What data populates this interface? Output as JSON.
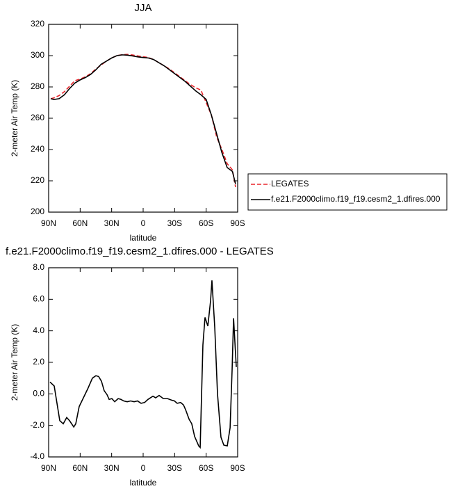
{
  "chart_data": [
    {
      "type": "line",
      "title": "JJA",
      "xlabel": "latitude",
      "ylabel": "2-meter Air Temp (K)",
      "x": [
        88,
        85,
        80,
        75,
        70,
        65,
        60,
        55,
        50,
        45,
        40,
        35,
        30,
        25,
        20,
        15,
        10,
        5,
        0,
        -5,
        -10,
        -15,
        -20,
        -25,
        -30,
        -35,
        -40,
        -45,
        -50,
        -55,
        -60,
        -65,
        -70,
        -75,
        -80,
        -85,
        -88
      ],
      "series": [
        {
          "name": "LEGATES",
          "color": "#e8262c",
          "line_style": "dashed",
          "values": [
            272.5,
            273,
            274.5,
            277,
            280.5,
            284,
            285,
            286.5,
            288.5,
            291.5,
            294,
            296.5,
            298.5,
            300,
            300.6,
            300.8,
            300.4,
            299.8,
            299.3,
            298.8,
            297.5,
            295.5,
            293.5,
            291.5,
            289,
            286.5,
            284,
            281.5,
            279.5,
            278,
            270,
            262,
            248,
            240,
            231,
            227,
            216
          ]
        },
        {
          "name": "f.e21.F2000climo.f19_f19.cesm2_1.dfires.000",
          "color": "#000000",
          "line_style": "solid",
          "values": [
            272.5,
            272,
            272.5,
            275,
            279,
            282.5,
            284.5,
            286,
            288,
            291,
            294.5,
            296.5,
            298.5,
            300,
            300.5,
            300.3,
            299.8,
            299.2,
            298.8,
            298.5,
            297.5,
            295.5,
            293.5,
            291,
            288.5,
            286,
            283.5,
            280.5,
            277.5,
            275,
            272,
            262,
            250,
            238,
            228.5,
            226,
            218
          ]
        }
      ],
      "xlim": [
        90,
        -90
      ],
      "xticks": [
        {
          "value": 90,
          "label": "90N"
        },
        {
          "value": 60,
          "label": "60N"
        },
        {
          "value": 30,
          "label": "30N"
        },
        0,
        {
          "value": -30,
          "label": "30S"
        },
        {
          "value": -60,
          "label": "60S"
        },
        {
          "value": -90,
          "label": "90S"
        }
      ],
      "ylim": [
        200,
        320
      ],
      "yticks": [
        200,
        220,
        240,
        260,
        280,
        300,
        320
      ],
      "legend": "right"
    },
    {
      "type": "line",
      "title": "f.e21.F2000climo.f19_f19.cesm2_1.dfires.000 - LEGATES",
      "xlabel": "latitude",
      "ylabel": "2-meter Air Temp (K)",
      "x": [
        88.7,
        84.7,
        79.4,
        76.1,
        72.8,
        70.1,
        66.1,
        64.2,
        60.9,
        56.9,
        52.9,
        48.3,
        45.0,
        42.4,
        39.7,
        37.1,
        34.4,
        32.4,
        29.8,
        27.1,
        23.8,
        21.2,
        18.5,
        15.2,
        11.9,
        8.6,
        5.3,
        2.0,
        -1.3,
        -4.6,
        -9.3,
        -11.9,
        -15.2,
        -19.2,
        -23.2,
        -27.1,
        -29.8,
        -32.4,
        -35.7,
        -38.4,
        -40.4,
        -43.7,
        -46.3,
        -49.0,
        -52.9,
        -54.3,
        -56.9,
        -58.9,
        -61.6,
        -64.2,
        -65.5,
        -68.2,
        -70.8,
        -74.1,
        -76.8,
        -80.1,
        -82.8,
        -84.7,
        -86.1,
        -88.7
      ],
      "series": [
        {
          "name": null,
          "color": "#000000",
          "line_style": "solid",
          "values": [
            0.75,
            0.5,
            -1.7,
            -1.9,
            -1.5,
            -1.7,
            -2.1,
            -1.9,
            -0.8,
            -0.25,
            0.3,
            1.0,
            1.15,
            1.1,
            0.8,
            0.2,
            -0.05,
            -0.35,
            -0.3,
            -0.5,
            -0.3,
            -0.35,
            -0.45,
            -0.5,
            -0.45,
            -0.5,
            -0.45,
            -0.6,
            -0.55,
            -0.35,
            -0.15,
            -0.25,
            -0.1,
            -0.3,
            -0.3,
            -0.4,
            -0.45,
            -0.6,
            -0.55,
            -0.7,
            -1.0,
            -1.6,
            -1.9,
            -2.7,
            -3.3,
            -3.4,
            3.1,
            4.85,
            4.3,
            5.9,
            7.2,
            4.2,
            0.0,
            -2.75,
            -3.25,
            -3.3,
            -2.15,
            1.5,
            4.8,
            1.7
          ]
        }
      ],
      "xlim": [
        90,
        -90
      ],
      "xticks": [
        {
          "value": 90,
          "label": "90N"
        },
        {
          "value": 60,
          "label": "60N"
        },
        {
          "value": 30,
          "label": "30N"
        },
        0,
        {
          "value": -30,
          "label": "30S"
        },
        {
          "value": -60,
          "label": "60S"
        },
        {
          "value": -90,
          "label": "90S"
        }
      ],
      "ylim": [
        -4,
        8
      ],
      "yticks": [
        {
          "value": -4,
          "label": "-4.0"
        },
        {
          "value": -2,
          "label": "-2.0"
        },
        {
          "value": 0,
          "label": "0.0"
        },
        {
          "value": 2,
          "label": "2.0"
        },
        {
          "value": 4,
          "label": "4.0"
        },
        {
          "value": 6,
          "label": "6.0"
        },
        {
          "value": 8,
          "label": "8.0"
        }
      ]
    }
  ]
}
